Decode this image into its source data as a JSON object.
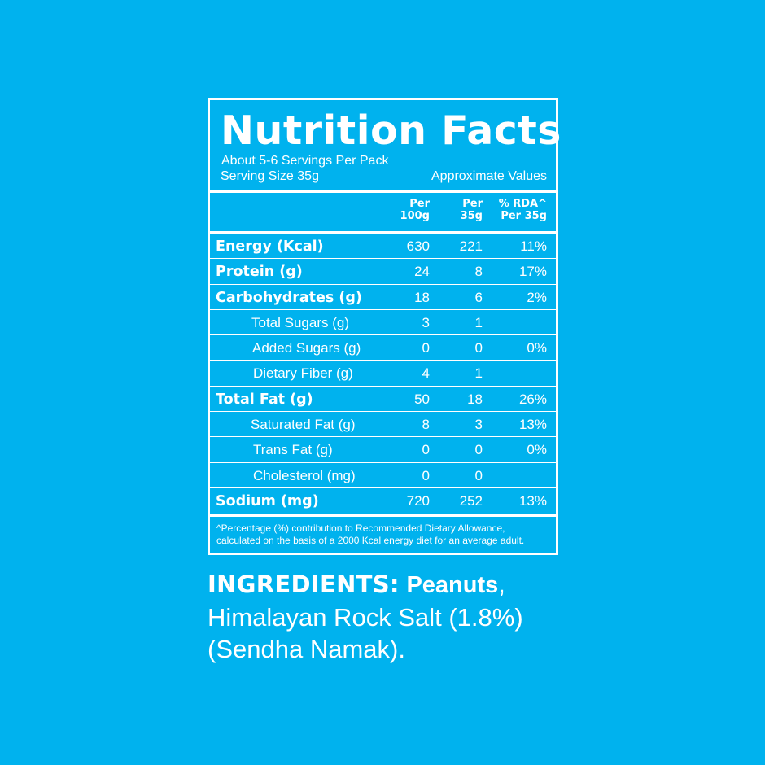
{
  "title": "Nutrition Facts",
  "servings_per_pack": "About 5-6 Servings Per Pack",
  "serving_size": "Serving Size 35g",
  "approx_values": "Approximate Values",
  "columns": {
    "per100_line1": "Per",
    "per100_line2": "100g",
    "per35_line1": "Per",
    "per35_line2": "35g",
    "rda_line1": "% RDA^",
    "rda_line2": "Per 35g"
  },
  "rows": [
    {
      "label": "Energy (Kcal)",
      "per100": "630",
      "per35": "221",
      "rda": "11%"
    },
    {
      "label": "Protein (g)",
      "per100": "24",
      "per35": "8",
      "rda": "17%"
    },
    {
      "label": "Carbohydrates (g)",
      "per100": "18",
      "per35": "6",
      "rda": "2%"
    },
    {
      "label": "Total Sugars (g)",
      "per100": "3",
      "per35": "1",
      "rda": ""
    },
    {
      "label": "Added Sugars (g)",
      "per100": "0",
      "per35": "0",
      "rda": "0%"
    },
    {
      "label": "Dietary Fiber (g)",
      "per100": "4",
      "per35": "1",
      "rda": ""
    },
    {
      "label": "Total Fat (g)",
      "per100": "50",
      "per35": "18",
      "rda": "26%"
    },
    {
      "label": "Saturated Fat (g)",
      "per100": "8",
      "per35": "3",
      "rda": "13%"
    },
    {
      "label": "Trans Fat (g)",
      "per100": "0",
      "per35": "0",
      "rda": "0%"
    },
    {
      "label": "Cholesterol (mg)",
      "per100": "0",
      "per35": "0",
      "rda": ""
    },
    {
      "label": "Sodium (mg)",
      "per100": "720",
      "per35": "252",
      "rda": "13%"
    }
  ],
  "footnote_line1": "^Percentage (%) contribution to Recommended Dietary Allowance,",
  "footnote_line2": "calculated on the basis of a 2000 Kcal energy diet for an average adult.",
  "ingredients": {
    "heading": "INGREDIENTS:",
    "first": "Peanuts",
    "comma": ",",
    "line2": "Himalayan Rock Salt (1.8%)",
    "line3": "(Sendha Namak)."
  },
  "colors": {
    "background": "#00b2ee",
    "foreground": "#ffffff"
  }
}
